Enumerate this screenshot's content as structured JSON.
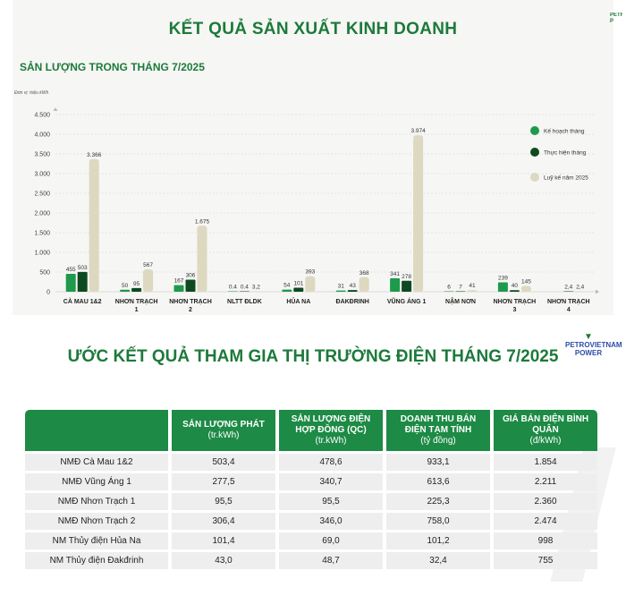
{
  "header": {
    "title": "KẾT QUẢ SẢN XUẤT KINH DOANH",
    "subtitle": "SẢN LƯỢNG TRONG THÁNG 7/2025"
  },
  "chart_data": {
    "type": "bar",
    "unit_label": "Đơn vị: triệu kWh",
    "categories": [
      "CÀ MAU 1&2",
      "NHƠN TRẠCH 1",
      "NHƠN TRẠCH 2",
      "NLTT ĐLDK",
      "HỦA NA",
      "ĐAKĐRINH",
      "VŨNG ÁNG 1",
      "NẬM NƠN",
      "NHƠN TRẠCH 3",
      "NHƠN TRẠCH 4"
    ],
    "category_lines": [
      [
        "CÀ MAU 1&2"
      ],
      [
        "NHƠN TRẠCH",
        "1"
      ],
      [
        "NHƠN TRẠCH",
        "2"
      ],
      [
        "NLTT ĐLDK"
      ],
      [
        "HỦA NA"
      ],
      [
        "ĐAKĐRINH"
      ],
      [
        "VŨNG ÁNG 1"
      ],
      [
        "NẬM NƠN"
      ],
      [
        "NHƠN TRẠCH",
        "3"
      ],
      [
        "NHƠN TRẠCH",
        "4"
      ]
    ],
    "series": [
      {
        "name": "Kế hoạch tháng",
        "color": "#1e9a4c",
        "values": [
          455,
          50,
          167,
          0.4,
          54,
          31,
          341,
          6,
          239,
          null
        ],
        "labels": [
          "455",
          "50",
          "167",
          "0.4",
          "54",
          "31",
          "341",
          "6",
          "239",
          ""
        ]
      },
      {
        "name": "Thực hiện tháng",
        "color": "#0d4a22",
        "values": [
          503,
          95,
          306,
          0.4,
          101,
          43,
          278,
          7,
          40,
          2.4
        ],
        "labels": [
          "503",
          "95",
          "306",
          "0.4",
          "101",
          "43",
          "278",
          "7",
          "40",
          "2,4"
        ]
      },
      {
        "name": "Luỹ kế năm 2025",
        "color": "#ddd8c0",
        "values": [
          3366,
          567,
          1675,
          3.2,
          393,
          368,
          3974,
          41,
          145,
          2.4
        ],
        "labels": [
          "3.366",
          "567",
          "1.675",
          "3,2",
          "393",
          "368",
          "3.974",
          "41",
          "145",
          "2,4"
        ]
      }
    ],
    "ylim": [
      0,
      4500
    ],
    "yticks": [
      0,
      500,
      1000,
      1500,
      2000,
      2500,
      3000,
      3500,
      4000,
      4500
    ],
    "ytick_labels": [
      "0",
      "500",
      "1.000",
      "1.500",
      "2.000",
      "2.500",
      "3.000",
      "3.500",
      "4.000",
      "4.500"
    ],
    "grid": true,
    "legend_position": "right"
  },
  "table_section": {
    "title": "ƯỚC KẾT QUẢ THAM GIA THỊ TRƯỜNG ĐIỆN THÁNG 7/2025",
    "logo_line1": "PETROVIETNAM",
    "logo_line2": "POWER",
    "headers": [
      {
        "main": "SẢN LƯỢNG PHÁT",
        "sub": "(tr.kWh)"
      },
      {
        "main": "SẢN LƯỢNG ĐIỆN HỢP ĐỒNG (QC)",
        "sub": "(tr.kWh)"
      },
      {
        "main": "DOANH THU BÁN ĐIỆN TẠM TÍNH",
        "sub": "(tỷ đồng)"
      },
      {
        "main": "GIÁ BÁN ĐIỆN BÌNH QUÂN",
        "sub": "(đ/kWh)"
      }
    ],
    "rows": [
      [
        "NMĐ Cà Mau 1&2",
        "503,4",
        "478,6",
        "933,1",
        "1.854"
      ],
      [
        "NMĐ Vũng Áng 1",
        "277,5",
        "340,7",
        "613,6",
        "2.211"
      ],
      [
        "NMĐ Nhơn Trạch 1",
        "95,5",
        "95,5",
        "225,3",
        "2.360"
      ],
      [
        "NMĐ Nhơn Trạch 2",
        "306,4",
        "346,0",
        "758,0",
        "2.474"
      ],
      [
        "NM Thủy điện Hủa Na",
        "101,4",
        "69,0",
        "101,2",
        "998"
      ],
      [
        "NM Thủy điện Đakđrinh",
        "43,0",
        "48,7",
        "32,4",
        "755"
      ]
    ]
  }
}
